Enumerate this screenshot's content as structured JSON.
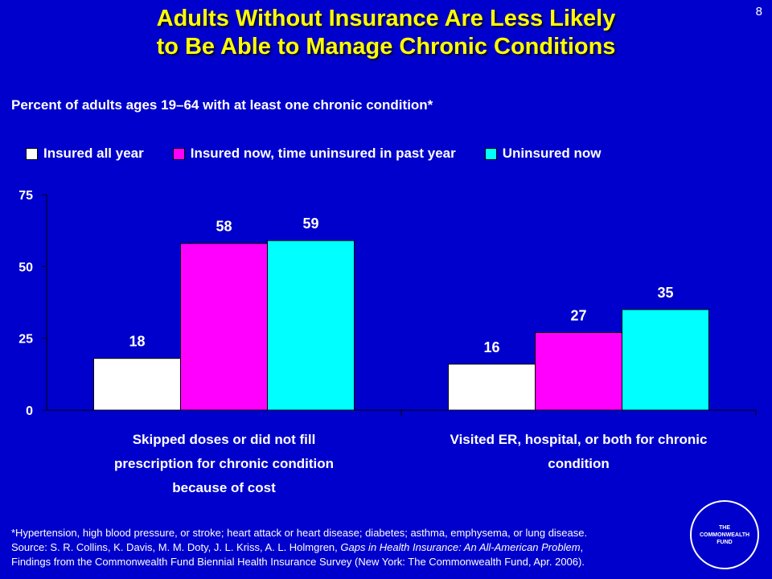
{
  "page_number": "8",
  "title": {
    "line1": "Adults Without Insurance Are Less Likely",
    "line2": "to Be Able to Manage Chronic Conditions"
  },
  "subtitle": "Percent of adults ages 19–64 with at least one chronic condition*",
  "legend": [
    {
      "label": "Insured all year",
      "color": "#FFFFFF"
    },
    {
      "label": "Insured now, time uninsured in past year",
      "color": "#FF00FF"
    },
    {
      "label": "Uninsured now",
      "color": "#00FFFF"
    }
  ],
  "chart_data": {
    "type": "bar",
    "categories": [
      [
        "Skipped doses or did not fill",
        "prescription for chronic condition",
        "because of cost"
      ],
      [
        "Visited ER, hospital, or both for chronic",
        "condition"
      ]
    ],
    "series": [
      {
        "name": "Insured all year",
        "values": [
          18,
          16
        ],
        "color": "#FFFFFF"
      },
      {
        "name": "Insured now, time uninsured in past year",
        "values": [
          58,
          27
        ],
        "color": "#FF00FF"
      },
      {
        "name": "Uninsured now",
        "values": [
          59,
          35
        ],
        "color": "#00FFFF"
      }
    ],
    "ylim": [
      0,
      75
    ],
    "yticks": [
      0,
      25,
      50,
      75
    ],
    "data_labels": true,
    "legend_position": "top"
  },
  "footnote": {
    "line1": "*Hypertension, high blood pressure, or stroke; heart attack or heart disease; diabetes; asthma, emphysema, or lung disease.",
    "line2_prefix": "Source: S. R. Collins, K. Davis, M. M. Doty, J. L. Kriss, A. L. Holmgren, ",
    "line2_italic": "Gaps in Health Insurance: An All-American Problem",
    "line2_suffix": ",",
    "line3": "Findings from the Commonwealth Fund Biennial Health Insurance Survey (New York: The Commonwealth Fund, Apr. 2006)."
  },
  "logo": {
    "text": "THE COMMONWEALTH FUND"
  }
}
